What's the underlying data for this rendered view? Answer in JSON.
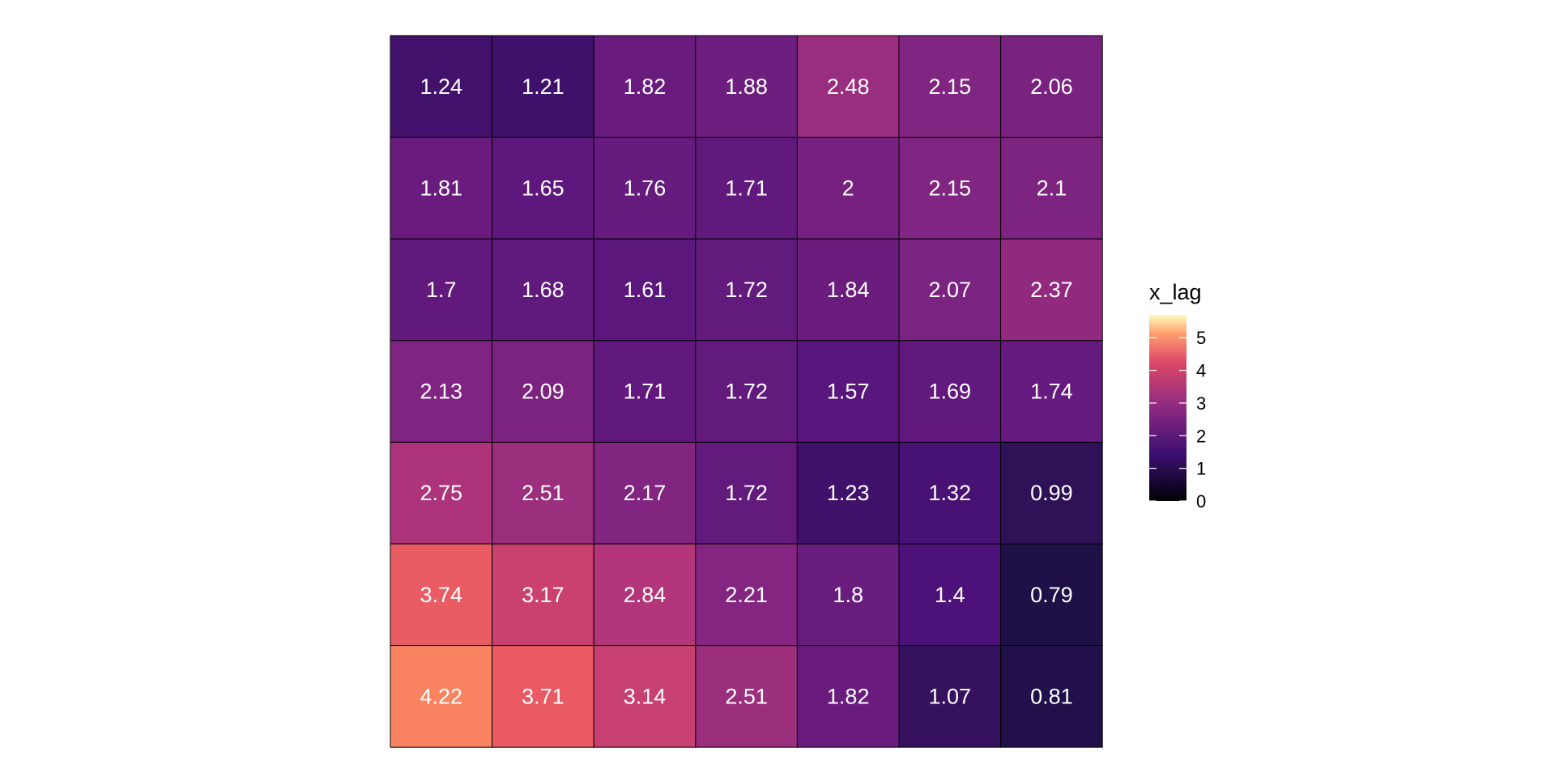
{
  "chart_data": {
    "type": "heatmap",
    "rows": 7,
    "cols": 7,
    "values": [
      [
        1.24,
        1.21,
        1.82,
        1.88,
        2.48,
        2.15,
        2.06
      ],
      [
        1.81,
        1.65,
        1.76,
        1.71,
        2,
        2.15,
        2.1
      ],
      [
        1.7,
        1.68,
        1.61,
        1.72,
        1.84,
        2.07,
        2.37
      ],
      [
        2.13,
        2.09,
        1.71,
        1.72,
        1.57,
        1.69,
        1.74
      ],
      [
        2.75,
        2.51,
        2.17,
        1.72,
        1.23,
        1.32,
        0.99
      ],
      [
        3.74,
        3.17,
        2.84,
        2.21,
        1.8,
        1.4,
        0.79
      ],
      [
        4.22,
        3.71,
        3.14,
        2.51,
        1.82,
        1.07,
        0.81
      ]
    ],
    "labels": [
      [
        "1.24",
        "1.21",
        "1.82",
        "1.88",
        "2.48",
        "2.15",
        "2.06"
      ],
      [
        "1.81",
        "1.65",
        "1.76",
        "1.71",
        "2",
        "2.15",
        "2.1"
      ],
      [
        "1.7",
        "1.68",
        "1.61",
        "1.72",
        "1.84",
        "2.07",
        "2.37"
      ],
      [
        "2.13",
        "2.09",
        "1.71",
        "1.72",
        "1.57",
        "1.69",
        "1.74"
      ],
      [
        "2.75",
        "2.51",
        "2.17",
        "1.72",
        "1.23",
        "1.32",
        "0.99"
      ],
      [
        "3.74",
        "3.17",
        "2.84",
        "2.21",
        "1.8",
        "1.4",
        "0.79"
      ],
      [
        "4.22",
        "3.71",
        "3.14",
        "2.51",
        "1.82",
        "1.07",
        "0.81"
      ]
    ],
    "colorscale": "magma",
    "legend": {
      "title": "x_lag",
      "placement": "right",
      "range": [
        0,
        5.7
      ],
      "ticks": [
        0,
        1,
        2,
        3,
        4,
        5
      ],
      "tick_labels": [
        "0",
        "1",
        "2",
        "3",
        "4",
        "5"
      ]
    },
    "grid": false
  }
}
